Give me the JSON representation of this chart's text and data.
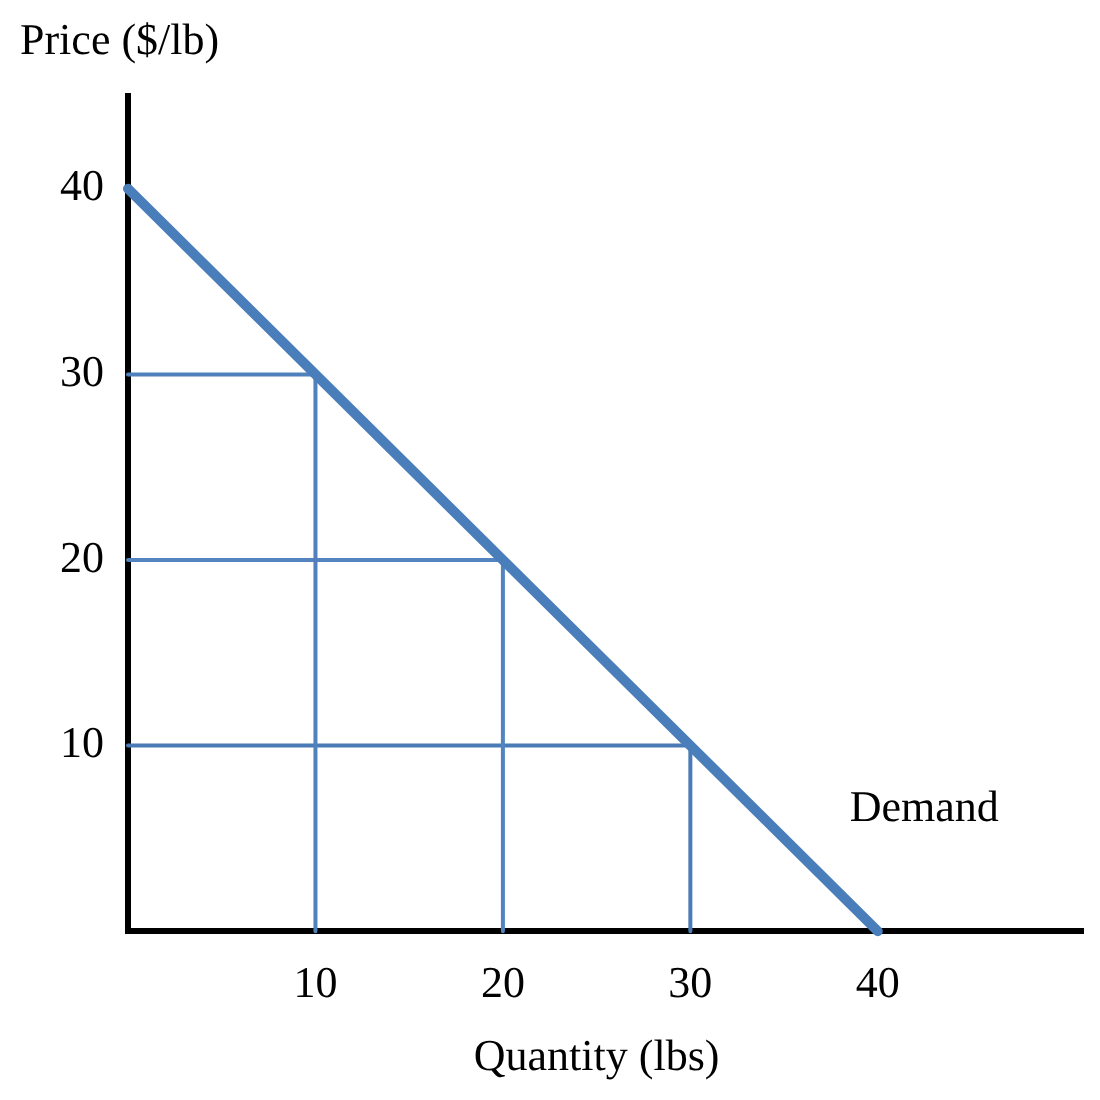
{
  "chart_data": {
    "type": "line",
    "xlabel": "Quantity (lbs)",
    "ylabel": "Price ($/lb)",
    "xlim": [
      0,
      51
    ],
    "ylim": [
      0,
      45
    ],
    "xticks": [
      10,
      20,
      30,
      40
    ],
    "yticks": [
      10,
      20,
      30,
      40
    ],
    "grid": false,
    "legend": false,
    "marker": "none",
    "line_style": "solid",
    "series": [
      {
        "name": "Demand",
        "color": "#4a7ebb",
        "x": [
          0,
          40
        ],
        "values": [
          40,
          0
        ]
      },
      {
        "color": "#4f81bd",
        "x": [
          0,
          10,
          10
        ],
        "values": [
          30,
          30,
          0
        ]
      },
      {
        "color": "#5384c0",
        "x": [
          0,
          20,
          20
        ],
        "values": [
          20,
          20,
          0
        ]
      },
      {
        "color": "#4b7bb7",
        "x": [
          0,
          30,
          30
        ],
        "values": [
          10,
          10,
          0
        ]
      }
    ]
  }
}
